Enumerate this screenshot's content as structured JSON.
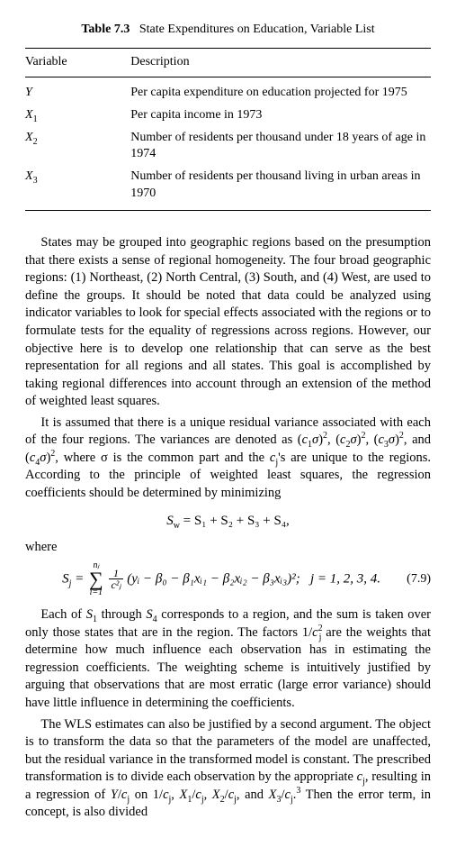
{
  "table": {
    "caption_label": "Table 7.3",
    "caption_title": "State Expenditures on Education, Variable List",
    "columns": [
      "Variable",
      "Description"
    ],
    "rows": [
      {
        "var_sym": "Y",
        "var_sub": "",
        "desc": "Per capita expenditure on education projected for 1975"
      },
      {
        "var_sym": "X",
        "var_sub": "1",
        "desc": "Per capita income in 1973"
      },
      {
        "var_sym": "X",
        "var_sub": "2",
        "desc": "Number of residents per thousand under 18 years of age in 1974"
      },
      {
        "var_sym": "X",
        "var_sub": "3",
        "desc": "Number of residents per thousand living in urban areas in 1970"
      }
    ]
  },
  "para1": "States may be grouped into geographic regions based on the presumption that there exists a sense of regional homogeneity. The four broad geographic regions: (1) Northeast, (2) North Central, (3) South, and (4) West, are used to define the groups. It should be noted that data could be analyzed using indicator variables to look for special effects associated with the regions or to formulate tests for the equality of regressions across regions. However, our objective here is to develop one relationship that can serve as the best representation for all regions and all states. This goal is accomplished by taking regional differences into account through an extension of the method of weighted least squares.",
  "para2a": "It is assumed that there is a unique residual variance associated with each of the four regions. The variances are denoted as ",
  "para2b": ", where σ is the common part and the ",
  "para2c": "'s are unique to the regions. According to the principle of weighted least squares, the regression coefficients should be determined by minimizing",
  "eq1": {
    "lhs": "S",
    "lhs_sub": "w",
    "rhs": "S₁ + S₂ + S₃ + S₄,"
  },
  "where_label": "where",
  "eq2": {
    "lhs_sym": "S",
    "lhs_sub": "j",
    "sum_top": "nⱼ",
    "sum_bot": "i=1",
    "frac_num": "1",
    "frac_den": "c²ⱼ",
    "inner": "(yᵢ − β₀ − β₁xᵢ₁ − β₂xᵢ₂ − β₃xᵢ₃)²;",
    "cond": "j = 1, 2, 3, 4.",
    "num": "(7.9)"
  },
  "para3a": "Each of ",
  "para3b": " corresponds to a region, and the sum is taken over only those states that are in the region. The factors ",
  "para3c": " are the weights that determine how much influence each observation has in estimating the regression coefficients. The weighting scheme is intuitively justified by arguing that observations that are most erratic (large error variance) should have little influence in determining the coefficients.",
  "para4a": "The WLS estimates can also be justified by a second argument. The object is to transform the data so that the parameters of the model are unaffected, but the residual variance in the transformed model is constant. The prescribed transformation is to divide each observation by the appropriate ",
  "para4b": ", resulting in a regression of ",
  "para4c": " on ",
  "para4d": " Then the error term, in concept, is also divided"
}
